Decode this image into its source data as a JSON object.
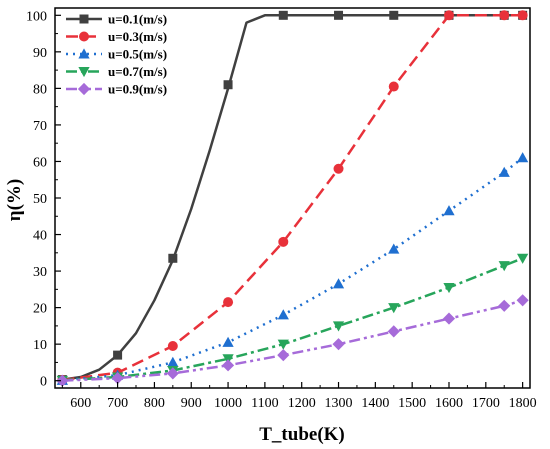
{
  "chart_data": {
    "type": "line",
    "xlabel": "T_tube(K)",
    "ylabel": "η(%)",
    "xlim": [
      530,
      1820
    ],
    "ylim": [
      -2,
      102
    ],
    "xticks": [
      600,
      700,
      800,
      900,
      1000,
      1100,
      1200,
      1300,
      1400,
      1500,
      1600,
      1700,
      1800
    ],
    "yticks": [
      0,
      10,
      20,
      30,
      40,
      50,
      60,
      70,
      80,
      90,
      100
    ],
    "grid": false,
    "legend_position": "top-left",
    "series": [
      {
        "name": "u=0.1(m/s)",
        "color": "#404040",
        "dash": "solid",
        "marker": "square",
        "line": [
          [
            550,
            0.3
          ],
          [
            600,
            1
          ],
          [
            650,
            3
          ],
          [
            700,
            7
          ],
          [
            750,
            13
          ],
          [
            800,
            22
          ],
          [
            850,
            33
          ],
          [
            900,
            47
          ],
          [
            950,
            63
          ],
          [
            1000,
            80
          ],
          [
            1050,
            98
          ],
          [
            1100,
            100
          ],
          [
            1150,
            100
          ],
          [
            1300,
            100
          ],
          [
            1450,
            100
          ],
          [
            1600,
            100
          ],
          [
            1750,
            100
          ],
          [
            1800,
            100
          ]
        ],
        "points": [
          [
            550,
            0.3
          ],
          [
            700,
            7
          ],
          [
            850,
            33.5
          ],
          [
            1000,
            81
          ],
          [
            1150,
            100
          ],
          [
            1300,
            100
          ],
          [
            1450,
            100
          ],
          [
            1600,
            100
          ],
          [
            1750,
            100
          ],
          [
            1800,
            100
          ]
        ]
      },
      {
        "name": "u=0.3(m/s)",
        "color": "#e8313a",
        "dash": "dash",
        "marker": "circle",
        "line": [
          [
            550,
            0.2
          ],
          [
            700,
            2.2
          ],
          [
            850,
            9.5
          ],
          [
            1000,
            21.5
          ],
          [
            1150,
            38
          ],
          [
            1300,
            58
          ],
          [
            1450,
            80.5
          ],
          [
            1600,
            100
          ],
          [
            1750,
            100
          ],
          [
            1800,
            100
          ]
        ],
        "points": [
          [
            550,
            0.2
          ],
          [
            700,
            2.2
          ],
          [
            850,
            9.5
          ],
          [
            1000,
            21.5
          ],
          [
            1150,
            38
          ],
          [
            1300,
            58
          ],
          [
            1450,
            80.5
          ],
          [
            1600,
            100
          ],
          [
            1750,
            100
          ],
          [
            1800,
            100
          ]
        ]
      },
      {
        "name": "u=0.5(m/s)",
        "color": "#1f6fd0",
        "dash": "dot",
        "marker": "triangle-up",
        "line": [
          [
            550,
            0.1
          ],
          [
            700,
            1.5
          ],
          [
            850,
            5
          ],
          [
            1000,
            10.5
          ],
          [
            1150,
            18
          ],
          [
            1300,
            26.5
          ],
          [
            1450,
            36
          ],
          [
            1600,
            46.5
          ],
          [
            1750,
            57
          ],
          [
            1800,
            61
          ]
        ],
        "points": [
          [
            550,
            0.1
          ],
          [
            700,
            1.5
          ],
          [
            850,
            5
          ],
          [
            1000,
            10.5
          ],
          [
            1150,
            18
          ],
          [
            1300,
            26.5
          ],
          [
            1450,
            36
          ],
          [
            1600,
            46.5
          ],
          [
            1750,
            57
          ],
          [
            1800,
            61
          ]
        ]
      },
      {
        "name": "u=0.7(m/s)",
        "color": "#27a55b",
        "dash": "dashdot",
        "marker": "triangle-down",
        "line": [
          [
            550,
            0.1
          ],
          [
            700,
            1
          ],
          [
            850,
            2.8
          ],
          [
            1000,
            6
          ],
          [
            1150,
            10
          ],
          [
            1300,
            15
          ],
          [
            1450,
            20
          ],
          [
            1600,
            25.5
          ],
          [
            1750,
            31.5
          ],
          [
            1800,
            33.5
          ]
        ],
        "points": [
          [
            550,
            0.1
          ],
          [
            700,
            1
          ],
          [
            850,
            2.8
          ],
          [
            1000,
            6
          ],
          [
            1150,
            10
          ],
          [
            1300,
            15
          ],
          [
            1450,
            20
          ],
          [
            1600,
            25.5
          ],
          [
            1750,
            31.5
          ],
          [
            1800,
            33.5
          ]
        ]
      },
      {
        "name": "u=0.9(m/s)",
        "color": "#a66bd9",
        "dash": "dashdotdot",
        "marker": "diamond",
        "line": [
          [
            550,
            0
          ],
          [
            700,
            0.7
          ],
          [
            850,
            2
          ],
          [
            1000,
            4.2
          ],
          [
            1150,
            7
          ],
          [
            1300,
            10
          ],
          [
            1450,
            13.5
          ],
          [
            1600,
            17
          ],
          [
            1750,
            20.5
          ],
          [
            1800,
            22
          ]
        ],
        "points": [
          [
            550,
            0
          ],
          [
            700,
            0.7
          ],
          [
            850,
            2
          ],
          [
            1000,
            4.2
          ],
          [
            1150,
            7
          ],
          [
            1300,
            10
          ],
          [
            1450,
            13.5
          ],
          [
            1600,
            17
          ],
          [
            1750,
            20.5
          ],
          [
            1800,
            22
          ]
        ]
      }
    ]
  }
}
